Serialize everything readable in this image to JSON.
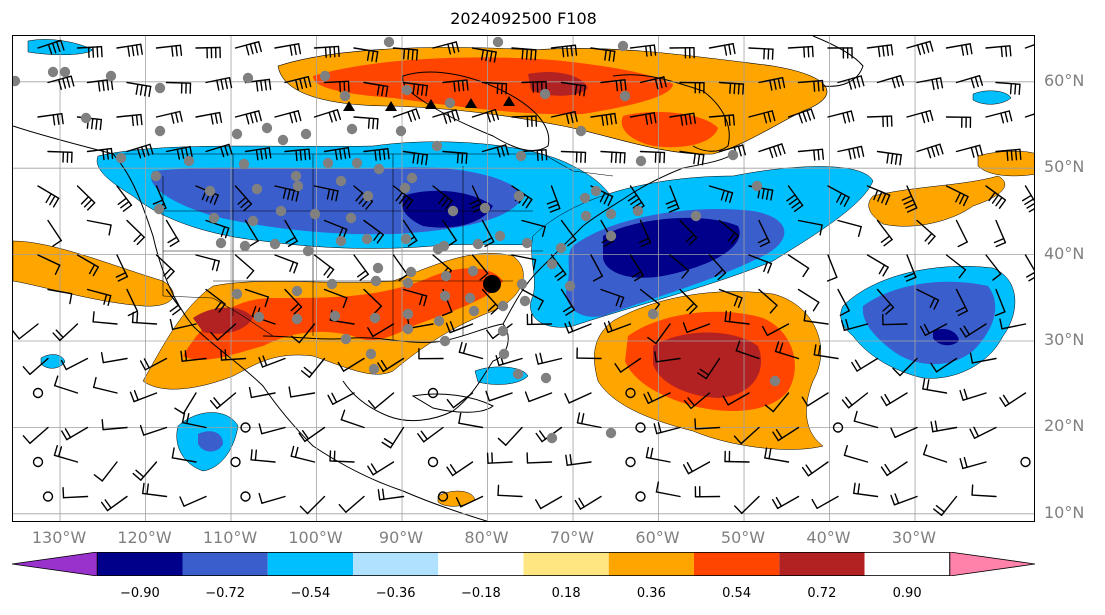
{
  "title": "2024092500 F108",
  "lat_labels": [
    {
      "text": "60°N",
      "lat": 60
    },
    {
      "text": "50°N",
      "lat": 50
    },
    {
      "text": "40°N",
      "lat": 40
    },
    {
      "text": "30°N",
      "lat": 30
    },
    {
      "text": "20°N",
      "lat": 20
    },
    {
      "text": "10°N",
      "lat": 10
    }
  ],
  "lon_labels": [
    {
      "text": "130°W",
      "lon": -130
    },
    {
      "text": "120°W",
      "lon": -120
    },
    {
      "text": "110°W",
      "lon": -110
    },
    {
      "text": "100°W",
      "lon": -100
    },
    {
      "text": "90°W",
      "lon": -90
    },
    {
      "text": "80°W",
      "lon": -80
    },
    {
      "text": "70°W",
      "lon": -70
    },
    {
      "text": "60°W",
      "lon": -60
    },
    {
      "text": "50°W",
      "lon": -50
    },
    {
      "text": "40°W",
      "lon": -40
    },
    {
      "text": "30°W",
      "lon": -30
    }
  ],
  "colorbar": {
    "ticks": [
      "−0.90",
      "−0.72",
      "−0.54",
      "−0.36",
      "−0.18",
      "0.18",
      "0.36",
      "0.54",
      "0.72",
      "0.90"
    ],
    "colors": [
      "#9932cc",
      "#00008b",
      "#3a5fcd",
      "#00bfff",
      "#b0e2ff",
      "#ffffff",
      "#ffe680",
      "#ffa500",
      "#ff4500",
      "#b22222",
      "#ff82ab"
    ]
  },
  "colors": {
    "neg_strong": "#00008b",
    "neg_mid": "#3a5fcd",
    "neg_light": "#00bfff",
    "pos_light": "#ffa500",
    "pos_mid": "#ff4500",
    "pos_strong": "#b22222",
    "gridline": "#a0a0a0",
    "station": "#808080"
  }
}
